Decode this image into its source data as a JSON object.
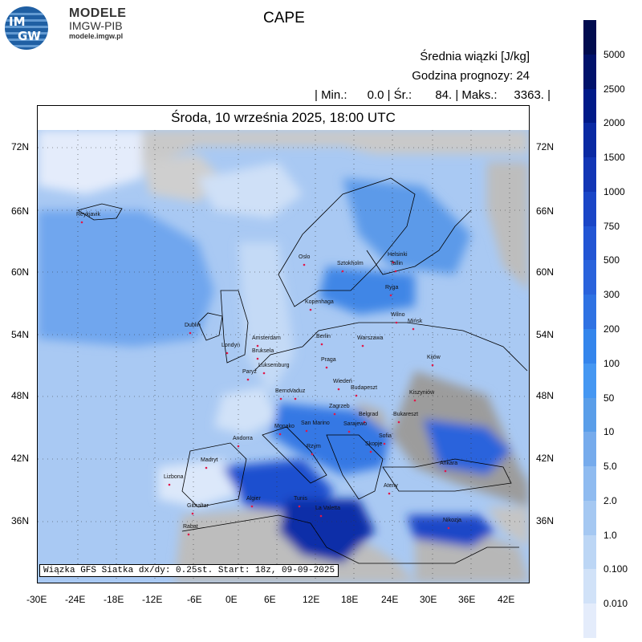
{
  "header": {
    "brand_line1": "MODELE",
    "brand_line2": "IMGW-PIB",
    "brand_url": "modele.imgw.pl",
    "logo_text_top": "IM",
    "logo_text_bottom": "GW",
    "parameter": "CAPE",
    "info_line1": "Średnia wiązki [J/kg]",
    "info_line2": "Godzina prognozy: 24",
    "stats_line": "| Min.:      0.0 | Śr.:       84. | Maks.:     3363. |"
  },
  "map": {
    "date_title": "Środa, 10 września 2025, 18:00 UTC",
    "footer": "Wiązka GFS Siatka dx/dy: 0.25st. Start: 18z, 09-09-2025",
    "lat_labels": [
      "72N",
      "66N",
      "60N",
      "54N",
      "48N",
      "42N",
      "36N"
    ],
    "lon_labels": [
      "-30E",
      "-24E",
      "-18E",
      "-12E",
      "-6E",
      "0E",
      "6E",
      "12E",
      "18E",
      "24E",
      "30E",
      "36E",
      "42E"
    ],
    "cities": [
      "Reykjavik",
      "Oslo",
      "Sztokholm",
      "Helsinki",
      "Tallin",
      "Ryga",
      "Kopenhaga",
      "Wilno",
      "Mińsk",
      "Dublin",
      "Londyn",
      "Amsterdam",
      "Berlin",
      "Warszawa",
      "Bruksela",
      "Luksemburg",
      "Praga",
      "Kijów",
      "Paryż",
      "Wiedeń",
      "Budapeszt",
      "Kiszyniów",
      "Berno",
      "Vaduz",
      "Zagrzeb",
      "Belgrad",
      "Bukareszt",
      "Monako",
      "San Marino",
      "Sarajewo",
      "Sofia",
      "Andorra",
      "Rzym",
      "Skopje",
      "Madryt",
      "Ankara",
      "Lizbona",
      "Ateny",
      "Algier",
      "Tunis",
      "Gibraltar",
      "La Valetta",
      "Nikozja",
      "Rabat"
    ]
  },
  "legend": {
    "labels": [
      "5000",
      "2500",
      "2000",
      "1500",
      "1000",
      "750",
      "500",
      "300",
      "200",
      "100",
      "50",
      "10",
      "5.0",
      "2.0",
      "1.0",
      "0.100",
      "0.010"
    ],
    "colors": [
      "#00126b",
      "#001a88",
      "#0a2aa3",
      "#1236b5",
      "#1a46c7",
      "#2255d4",
      "#2a63dc",
      "#2f72e3",
      "#3485ec",
      "#4597f2",
      "#5a9ee9",
      "#76abec",
      "#8fbbf0",
      "#a5c8f2",
      "#bcd6f5",
      "#d1e2f8",
      "#e4ecfb"
    ]
  }
}
